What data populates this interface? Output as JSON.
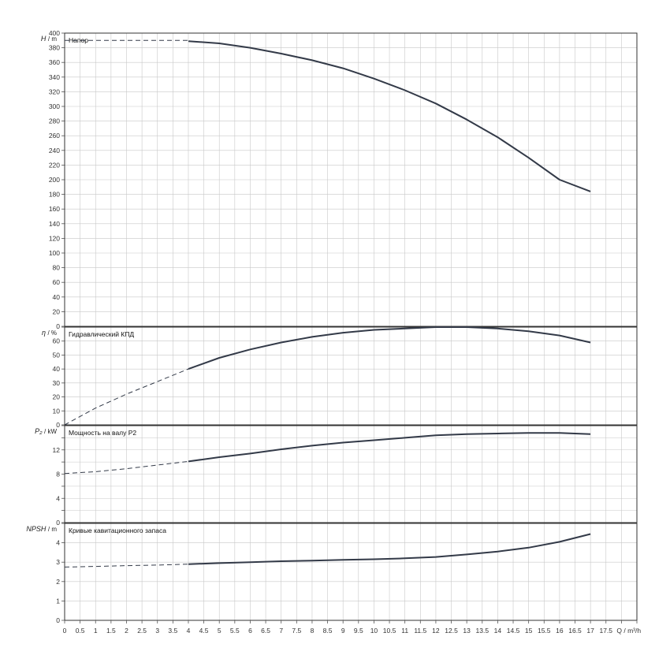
{
  "x_axis": {
    "min": 0,
    "max": 18.5,
    "step": 0.5,
    "ticks": [
      "0",
      "0.5",
      "1",
      "1.5",
      "2",
      "2.5",
      "3",
      "3.5",
      "4",
      "4.5",
      "5",
      "5.5",
      "6",
      "6.5",
      "7",
      "7.5",
      "8",
      "8.5",
      "9",
      "9.5",
      "10",
      "10.5",
      "11",
      "11.5",
      "12",
      "12.5",
      "13",
      "13.5",
      "14",
      "14.5",
      "15",
      "15.5",
      "16",
      "16.5",
      "17",
      "17.5"
    ],
    "label": "Q / m³/h"
  },
  "colors": {
    "curve": "#333a48",
    "grid": "#c8c8c8",
    "frame": "#333333"
  },
  "chart_data": [
    {
      "type": "line",
      "title": "Напор",
      "ylabel_symbol": "H",
      "ylabel_unit": "/ m",
      "ylim": [
        0,
        400
      ],
      "ytick_step": 20,
      "yticks": [
        "0",
        "20",
        "40",
        "60",
        "80",
        "100",
        "120",
        "140",
        "160",
        "180",
        "200",
        "220",
        "240",
        "260",
        "280",
        "300",
        "320",
        "340",
        "360",
        "380",
        "400"
      ],
      "dashed": {
        "x": [
          0,
          1,
          2,
          3,
          4
        ],
        "y": [
          390,
          390,
          390,
          390,
          390
        ]
      },
      "solid": {
        "x": [
          4,
          5,
          6,
          7,
          8,
          9,
          10,
          11,
          12,
          13,
          14,
          15,
          16,
          17
        ],
        "y": [
          389,
          386,
          380,
          372,
          363,
          352,
          338,
          322,
          304,
          282,
          258,
          230,
          200,
          184
        ]
      }
    },
    {
      "type": "line",
      "title": "Гидравлический КПД",
      "ylabel_symbol": "η",
      "ylabel_unit": "/ %",
      "ylim": [
        0,
        70
      ],
      "ytick_step": 10,
      "yticks": [
        "0",
        "10",
        "20",
        "30",
        "40",
        "50",
        "60"
      ],
      "dashed": {
        "x": [
          0,
          1,
          2,
          3,
          4
        ],
        "y": [
          0,
          12,
          22,
          31,
          40
        ]
      },
      "solid": {
        "x": [
          4,
          5,
          6,
          7,
          8,
          9,
          10,
          11,
          12,
          13,
          14,
          15,
          16,
          17
        ],
        "y": [
          40,
          48,
          54,
          59,
          63,
          66,
          68,
          69,
          70,
          70,
          69,
          67,
          64,
          59
        ]
      }
    },
    {
      "type": "line",
      "title": "Мощность на валу P2",
      "ylabel_symbol": "P₂",
      "ylabel_unit": "/ kW",
      "ylim": [
        0,
        16
      ],
      "ytick_step": 2,
      "yticks": [
        "0",
        "",
        "4",
        "",
        "8",
        "",
        "12",
        ""
      ],
      "dashed": {
        "x": [
          0,
          1,
          2,
          3,
          4
        ],
        "y": [
          8.1,
          8.4,
          8.9,
          9.5,
          10.1
        ]
      },
      "solid": {
        "x": [
          4,
          5,
          6,
          7,
          8,
          9,
          10,
          11,
          12,
          13,
          14,
          15,
          16,
          17
        ],
        "y": [
          10.1,
          10.8,
          11.4,
          12.1,
          12.7,
          13.2,
          13.6,
          14.0,
          14.4,
          14.6,
          14.7,
          14.8,
          14.8,
          14.6
        ]
      }
    },
    {
      "type": "line",
      "title": "Кривые кавитационного запаса",
      "ylabel_symbol": "NPSH",
      "ylabel_unit": "/ m",
      "ylim": [
        0,
        5
      ],
      "ytick_step": 1,
      "yticks": [
        "0",
        "1",
        "2",
        "3",
        "4"
      ],
      "dashed": {
        "x": [
          0,
          1,
          2,
          3,
          4
        ],
        "y": [
          2.75,
          2.78,
          2.82,
          2.85,
          2.9
        ]
      },
      "solid": {
        "x": [
          4,
          5,
          6,
          7,
          8,
          9,
          10,
          11,
          12,
          13,
          14,
          15,
          16,
          17
        ],
        "y": [
          2.9,
          2.95,
          3.0,
          3.05,
          3.08,
          3.12,
          3.15,
          3.2,
          3.27,
          3.4,
          3.55,
          3.75,
          4.05,
          4.45
        ]
      }
    }
  ]
}
